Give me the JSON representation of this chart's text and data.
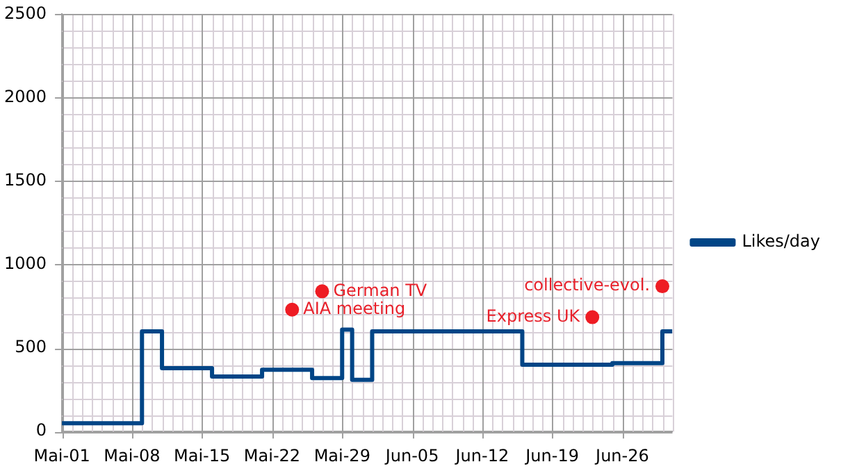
{
  "chart_data": {
    "type": "step",
    "x": [
      "--05-01",
      "--05-09",
      "--05-11",
      "--05-16",
      "--05-21",
      "--05-26",
      "--05-29",
      "--05-30",
      "--06-01",
      "--06-16",
      "--06-25",
      "--06-30",
      "--07-01"
    ],
    "series": [
      {
        "name": "Likes/day",
        "color": "#004586",
        "values": [
          50,
          600,
          380,
          330,
          370,
          320,
          610,
          310,
          600,
          400,
          410,
          600,
          600
        ]
      }
    ],
    "xlim": [
      "--05-01",
      "--07-01"
    ],
    "xticks": [
      {
        "value": "--05-01",
        "label": "Mai-01"
      },
      {
        "value": "--05-08",
        "label": "Mai-08"
      },
      {
        "value": "--05-15",
        "label": "Mai-15"
      },
      {
        "value": "--05-22",
        "label": "Mai-22"
      },
      {
        "value": "--05-29",
        "label": "Mai-29"
      },
      {
        "value": "--06-05",
        "label": "Jun-05"
      },
      {
        "value": "--06-12",
        "label": "Jun-12"
      },
      {
        "value": "--06-19",
        "label": "Jun-19"
      },
      {
        "value": "--06-26",
        "label": "Jun-26"
      }
    ],
    "ylim": [
      0,
      2500
    ],
    "yticks": [
      0,
      500,
      1000,
      1500,
      2000,
      2500
    ],
    "annotations": [
      {
        "text": "German TV",
        "x": "--05-27",
        "y": 840
      },
      {
        "text": "AIA meeting",
        "x": "--05-24",
        "y": 730
      },
      {
        "text": "collective-evol.",
        "x": "--06-30",
        "y": 870
      },
      {
        "text": "Express UK",
        "x": "--06-23",
        "y": 685
      }
    ],
    "grid": true,
    "legend": "right",
    "line_style": "solid",
    "marker": "none"
  }
}
